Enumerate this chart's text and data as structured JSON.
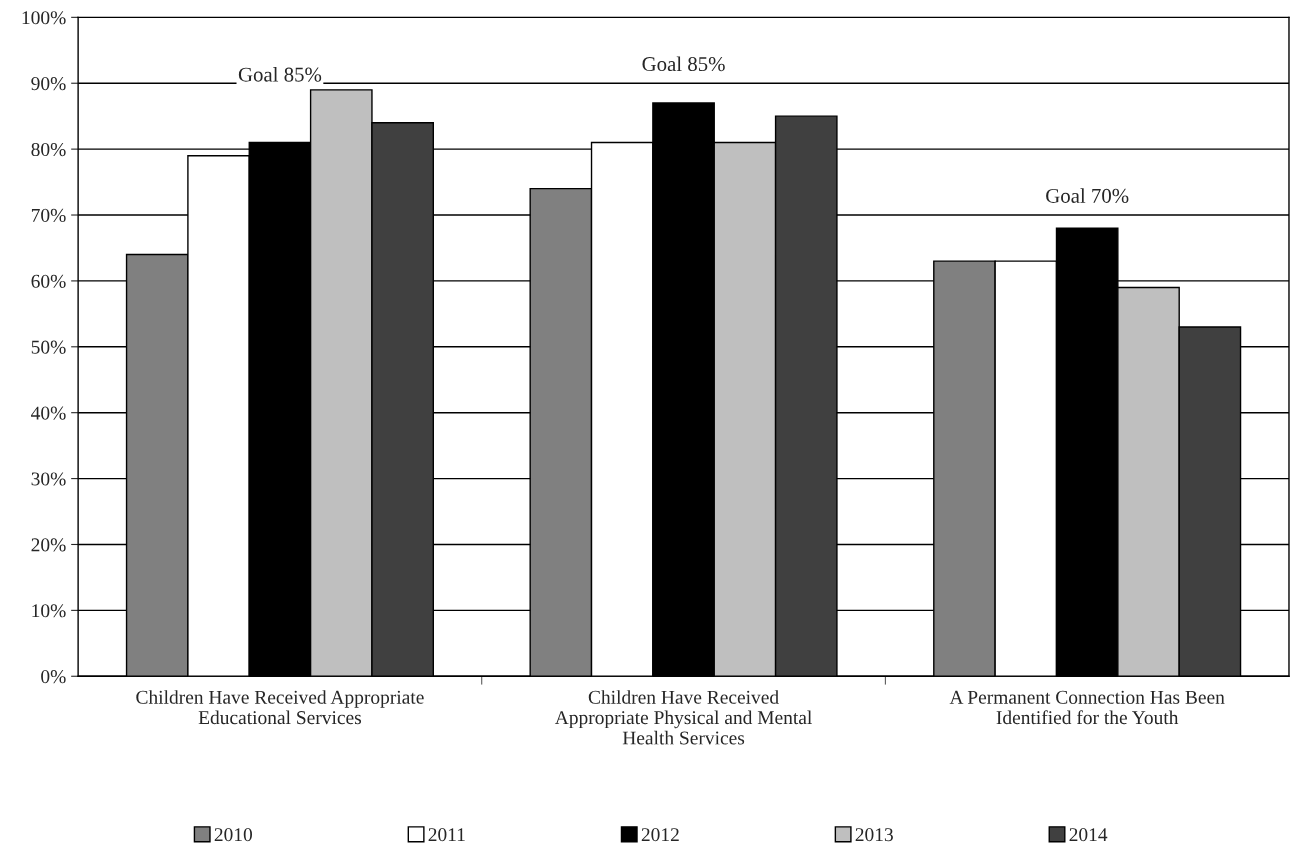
{
  "chart_data": {
    "type": "bar",
    "categories": [
      "Children Have Received Appropriate\nEducational Services",
      "Children Have Received\nAppropriate Physical and Mental\nHealth Services",
      "A Permanent Connection Has Been\nIdentified for the Youth"
    ],
    "series": [
      {
        "name": "2010",
        "color": "#808080",
        "values": [
          64,
          74,
          63
        ]
      },
      {
        "name": "2011",
        "color": "#ffffff",
        "values": [
          79,
          81,
          63
        ]
      },
      {
        "name": "2012",
        "color": "#000000",
        "values": [
          81,
          87,
          68
        ]
      },
      {
        "name": "2013",
        "color": "#bfbfbf",
        "values": [
          89,
          81,
          59
        ]
      },
      {
        "name": "2014",
        "color": "#404040",
        "values": [
          84,
          85,
          53
        ]
      }
    ],
    "ylim": [
      0,
      100
    ],
    "yticks": [
      {
        "value": 0,
        "label": "0%"
      },
      {
        "value": 10,
        "label": "10%"
      },
      {
        "value": 20,
        "label": "20%"
      },
      {
        "value": 30,
        "label": "30%"
      },
      {
        "value": 40,
        "label": "40%"
      },
      {
        "value": 50,
        "label": "50%"
      },
      {
        "value": 60,
        "label": "60%"
      },
      {
        "value": 70,
        "label": "70%"
      },
      {
        "value": 80,
        "label": "80%"
      },
      {
        "value": 90,
        "label": "90%"
      },
      {
        "value": 100,
        "label": "100%"
      }
    ],
    "annotations": [
      "Goal 85%",
      "Goal 85%",
      "Goal 70%"
    ],
    "grid": "y",
    "legend": "bottom"
  }
}
